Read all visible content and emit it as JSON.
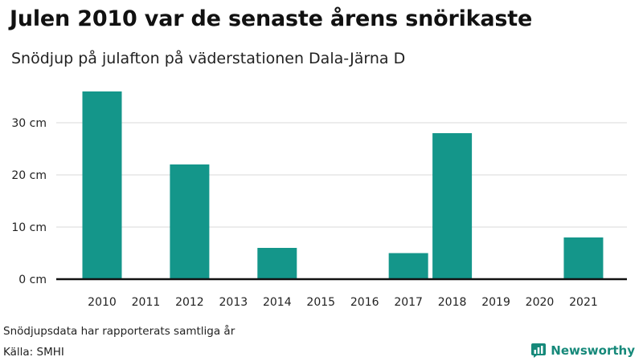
{
  "title": "Julen 2010 var de senaste årens snörikaste",
  "subtitle": "Snödjup på julafton på väderstationen Dala-Järna D",
  "footnote": "Snödjupsdata har rapporterats samtliga år",
  "source": "Källa: SMHI",
  "brand": {
    "name": "Newsworthy",
    "icon": "bar-chart-logo-icon",
    "color": "#16897a"
  },
  "colors": {
    "bar": "#14968a",
    "grid": "#d9d9d9",
    "axis": "#111111"
  },
  "chart_data": {
    "type": "bar",
    "categories": [
      "2010",
      "2011",
      "2012",
      "2013",
      "2014",
      "2015",
      "2016",
      "2017",
      "2018",
      "2019",
      "2020",
      "2021"
    ],
    "values": [
      36,
      0,
      22,
      0,
      6,
      0,
      0,
      5,
      28,
      0,
      0,
      8
    ],
    "unit": "cm",
    "yticks": [
      0,
      10,
      20,
      30
    ],
    "ytick_labels": [
      "0 cm",
      "10 cm",
      "20 cm",
      "30 cm"
    ],
    "ylim": [
      0,
      36
    ],
    "grid": true
  }
}
